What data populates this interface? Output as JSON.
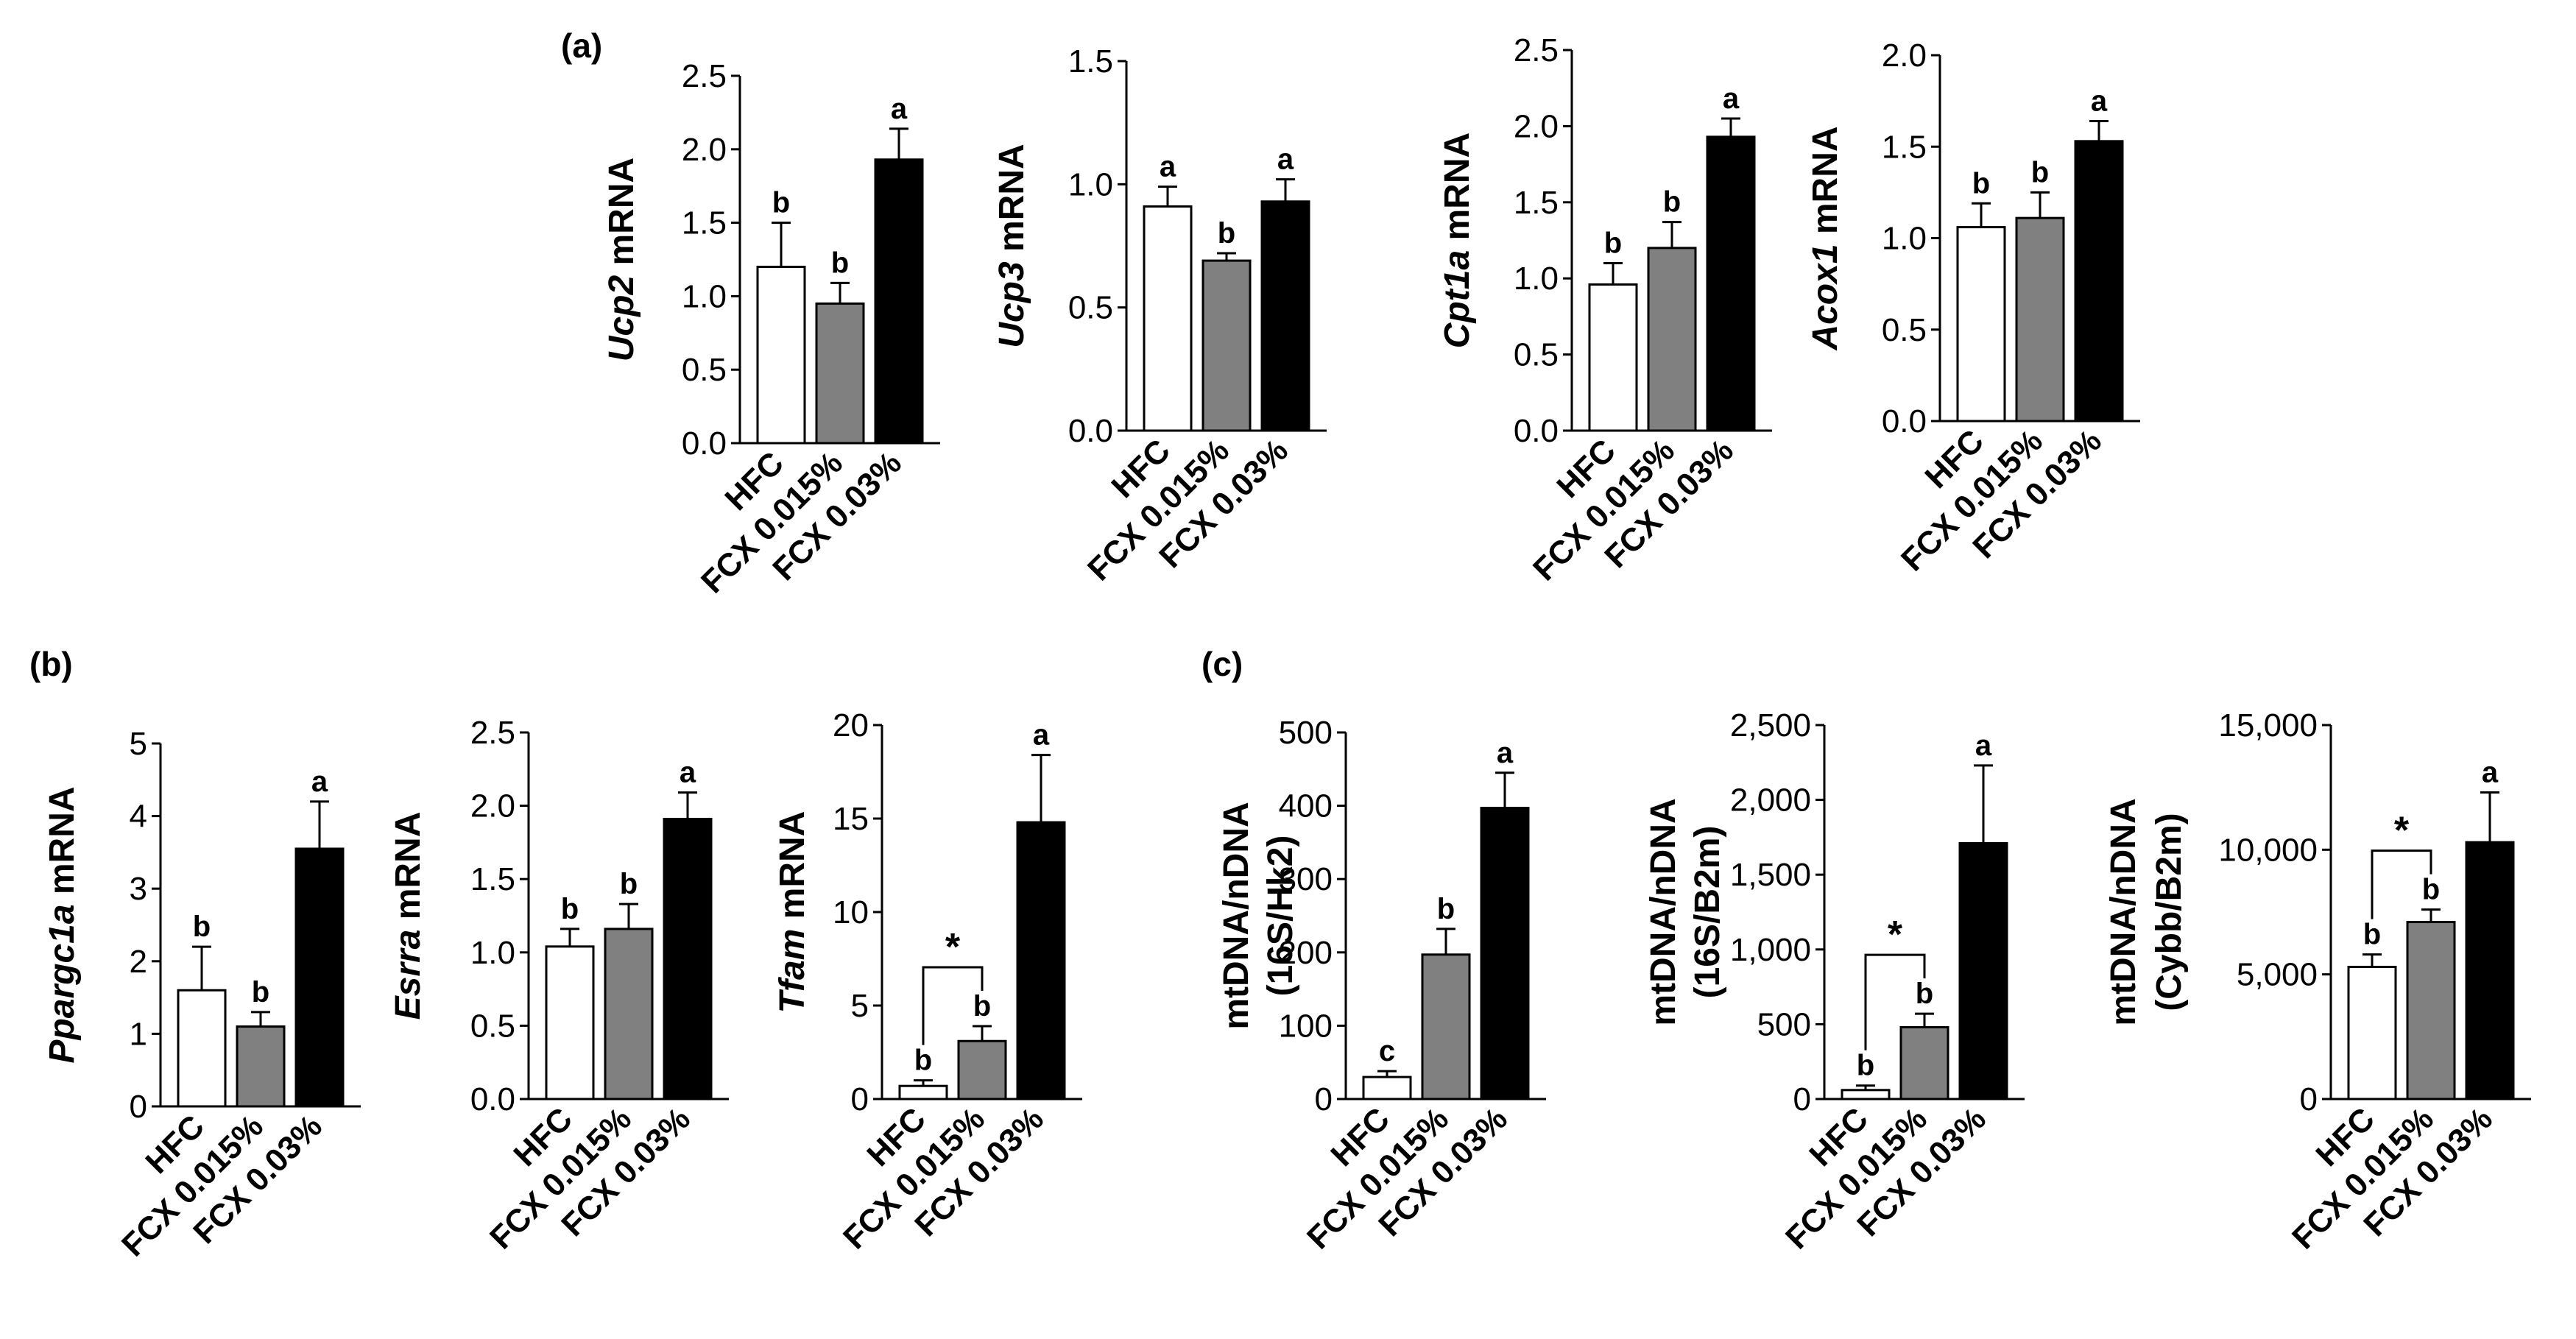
{
  "panel_labels": {
    "a": "(a)",
    "b": "(b)",
    "c": "(c)"
  },
  "colors": {
    "HFC": "#ffffff",
    "FCX 0.015%": "#808080",
    "FCX 0.03%": "#000000"
  },
  "chart_data": [
    {
      "id": "ucp2",
      "panel": "a",
      "type": "bar",
      "categories": [
        "HFC",
        "FCX 0.015%",
        "FCX 0.03%"
      ],
      "values": [
        1.2,
        0.95,
        1.93
      ],
      "errors": [
        0.3,
        0.14,
        0.21
      ],
      "letters": [
        "b",
        "b",
        "a"
      ],
      "ylabel_italic": "Ucp2",
      "ylabel_rest": " mRNA",
      "ylim": [
        0,
        2.5
      ],
      "yticks": [
        "0.0",
        "0.5",
        "1.0",
        "1.5",
        "2.0",
        "2.5"
      ]
    },
    {
      "id": "ucp3",
      "panel": "a",
      "type": "bar",
      "categories": [
        "HFC",
        "FCX 0.015%",
        "FCX 0.03%"
      ],
      "values": [
        0.91,
        0.69,
        0.93
      ],
      "errors": [
        0.08,
        0.03,
        0.09
      ],
      "letters": [
        "a",
        "b",
        "a"
      ],
      "ylabel_italic": "Ucp3",
      "ylabel_rest": " mRNA",
      "ylim": [
        0,
        1.5
      ],
      "yticks": [
        "0.0",
        "0.5",
        "1.0",
        "1.5"
      ]
    },
    {
      "id": "cpt1a",
      "panel": "a",
      "type": "bar",
      "categories": [
        "HFC",
        "FCX 0.015%",
        "FCX 0.03%"
      ],
      "values": [
        0.96,
        1.2,
        1.93
      ],
      "errors": [
        0.14,
        0.17,
        0.12
      ],
      "letters": [
        "b",
        "b",
        "a"
      ],
      "ylabel_italic": "Cpt1a",
      "ylabel_rest": " mRNA",
      "ylim": [
        0,
        2.5
      ],
      "yticks": [
        "0.0",
        "0.5",
        "1.0",
        "1.5",
        "2.0",
        "2.5"
      ]
    },
    {
      "id": "acox1",
      "panel": "a",
      "type": "bar",
      "categories": [
        "HFC",
        "FCX 0.015%",
        "FCX 0.03%"
      ],
      "values": [
        1.06,
        1.11,
        1.53
      ],
      "errors": [
        0.13,
        0.14,
        0.11
      ],
      "letters": [
        "b",
        "b",
        "a"
      ],
      "ylabel_italic": "Acox1",
      "ylabel_rest": " mRNA",
      "ylim": [
        0,
        2.0
      ],
      "yticks": [
        "0.0",
        "0.5",
        "1.0",
        "1.5",
        "2.0"
      ]
    },
    {
      "id": "ppargc1a",
      "panel": "b",
      "type": "bar",
      "categories": [
        "HFC",
        "FCX 0.015%",
        "FCX 0.03%"
      ],
      "values": [
        1.6,
        1.1,
        3.55
      ],
      "errors": [
        0.6,
        0.2,
        0.65
      ],
      "letters": [
        "b",
        "b",
        "a"
      ],
      "ylabel_italic": "Ppargc1a",
      "ylabel_rest": " mRNA",
      "ylim": [
        0,
        5
      ],
      "yticks": [
        "0",
        "1",
        "2",
        "3",
        "4",
        "5"
      ]
    },
    {
      "id": "esrra",
      "panel": "b",
      "type": "bar",
      "categories": [
        "HFC",
        "FCX 0.015%",
        "FCX 0.03%"
      ],
      "values": [
        1.04,
        1.16,
        1.91
      ],
      "errors": [
        0.12,
        0.17,
        0.18
      ],
      "letters": [
        "b",
        "b",
        "a"
      ],
      "ylabel_italic": "Esrra",
      "ylabel_rest": " mRNA",
      "ylim": [
        0,
        2.5
      ],
      "yticks": [
        "0.0",
        "0.5",
        "1.0",
        "1.5",
        "2.0",
        "2.5"
      ]
    },
    {
      "id": "tfam",
      "panel": "b",
      "type": "bar",
      "categories": [
        "HFC",
        "FCX 0.015%",
        "FCX 0.03%"
      ],
      "values": [
        0.7,
        3.1,
        14.8
      ],
      "errors": [
        0.3,
        0.8,
        3.6
      ],
      "letters": [
        "b",
        "b",
        "a"
      ],
      "ylabel_italic": "Tfam",
      "ylabel_rest": " mRNA",
      "ylim": [
        0,
        20
      ],
      "yticks": [
        "0",
        "5",
        "10",
        "15",
        "20"
      ],
      "bracket": {
        "from": 0,
        "to": 1,
        "label": "*"
      }
    },
    {
      "id": "mt16s_hk2",
      "panel": "c",
      "type": "bar",
      "categories": [
        "HFC",
        "FCX 0.015%",
        "FCX 0.03%"
      ],
      "values": [
        30,
        197,
        397
      ],
      "errors": [
        8,
        35,
        48
      ],
      "letters": [
        "c",
        "b",
        "a"
      ],
      "ylabel_lines": [
        "mtDNA/nDNA",
        "(16S/Hk2)"
      ],
      "ylim": [
        0,
        500
      ],
      "yticks": [
        "0",
        "100",
        "200",
        "300",
        "400",
        "500"
      ]
    },
    {
      "id": "mt16s_b2m",
      "panel": "c",
      "type": "bar",
      "categories": [
        "HFC",
        "FCX 0.015%",
        "FCX 0.03%"
      ],
      "values": [
        60,
        480,
        1710
      ],
      "errors": [
        30,
        90,
        520
      ],
      "letters": [
        "b",
        "b",
        "a"
      ],
      "ylabel_lines": [
        "mtDNA/nDNA",
        "(16S/B2m)"
      ],
      "ylim": [
        0,
        2500
      ],
      "yticks": [
        "0",
        "500",
        "1,000",
        "1,500",
        "2,000",
        "2,500"
      ],
      "bracket": {
        "from": 0,
        "to": 1,
        "label": "*"
      }
    },
    {
      "id": "cybb_b2m",
      "panel": "c",
      "type": "bar",
      "categories": [
        "HFC",
        "FCX 0.015%",
        "FCX 0.03%"
      ],
      "values": [
        5300,
        7100,
        10300
      ],
      "errors": [
        500,
        500,
        2000
      ],
      "letters": [
        "b",
        "b",
        "a"
      ],
      "ylabel_lines": [
        "mtDNA/nDNA",
        "(Cybb/B2m)"
      ],
      "ylim": [
        0,
        15000
      ],
      "yticks": [
        "0",
        "5,000",
        "10,000",
        "15,000"
      ],
      "bracket": {
        "from": 0,
        "to": 1,
        "label": "*"
      }
    }
  ]
}
